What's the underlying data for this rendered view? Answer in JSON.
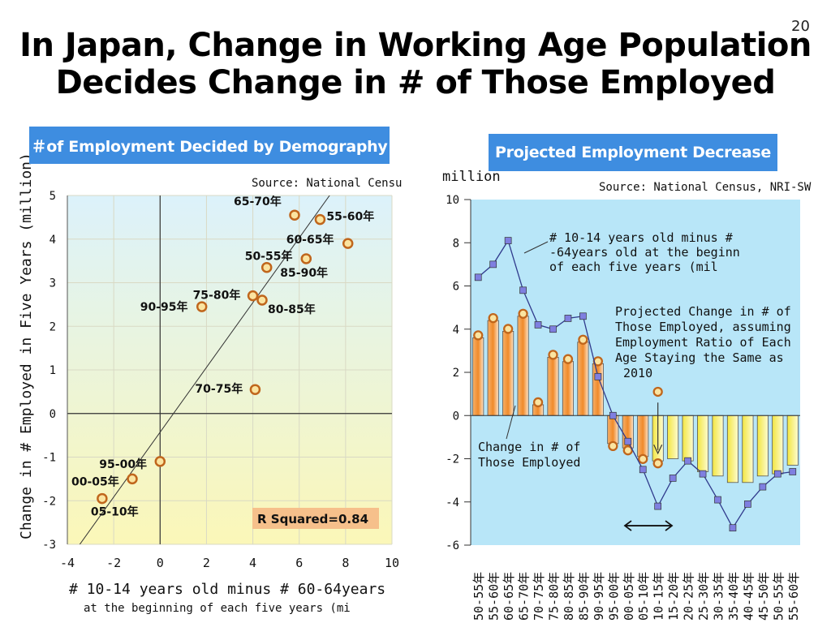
{
  "slide": {
    "title_line1": "In Japan, Change in Working Age Population",
    "title_line2": "Decides Change in # of Those Employed",
    "page_number": "20"
  },
  "left_panel": {
    "banner": "＃of Employment Decided by Demography",
    "source": "Source: National Censu",
    "r_squared": "R Squared=0.84"
  },
  "right_panel": {
    "banner": "Projected Employment Decrease",
    "source": "Source: National Census, NRI-SW",
    "unit": "million",
    "annotation_line": [
      "# 10-14 years old minus #",
      "-64years old at the beginn",
      "of each five years  (mil"
    ],
    "annotation_projection": [
      "Projected Change in # of",
      "Those Employed, assuming",
      "Employment Ratio of Each",
      "Age  Staying the Same as",
      "2010"
    ],
    "annotation_change": [
      "Change in # of",
      "Those Employed"
    ]
  },
  "colors": {
    "banner": "#3e8de0",
    "scatter_bg_top": "#dcf2fb",
    "scatter_bg_bottom": "#fbf7b8",
    "right_bg": "#b8e6f8",
    "marker": "#c0661c",
    "bar_orange": "#f08a2a",
    "bar_yellow": "#f7f26a",
    "line_square": "#7f7fe0",
    "line": "#303a8c",
    "rsq_bg": "#f6c08b"
  },
  "chart_data": [
    {
      "type": "scatter",
      "title": "",
      "xlabel": "# 10-14 years old minus # 60-64years",
      "xlabel2": "at the beginning of each five years  (mi",
      "ylabel": "Change in # Employed in Five Years (million)",
      "xlim": [
        -4,
        10
      ],
      "ylim": [
        -3,
        5
      ],
      "xticks": [
        -4,
        -2,
        0,
        2,
        4,
        6,
        8,
        10
      ],
      "yticks": [
        -3,
        -2,
        -1,
        0,
        1,
        2,
        3,
        4,
        5
      ],
      "points": [
        {
          "label": "65-70年",
          "x": 5.8,
          "y": 4.55
        },
        {
          "label": "55-60年",
          "x": 6.9,
          "y": 4.45
        },
        {
          "label": "60-65年",
          "x": 8.1,
          "y": 3.9
        },
        {
          "label": "50-55年",
          "x": 4.6,
          "y": 3.35
        },
        {
          "label": "85-90年",
          "x": 6.3,
          "y": 3.55
        },
        {
          "label": "75-80年",
          "x": 4.0,
          "y": 2.7
        },
        {
          "label": "80-85年",
          "x": 4.4,
          "y": 2.6
        },
        {
          "label": "90-95年",
          "x": 1.8,
          "y": 2.45
        },
        {
          "label": "70-75年",
          "x": 4.1,
          "y": 0.55
        },
        {
          "label": "95-00年",
          "x": 0.0,
          "y": -1.1
        },
        {
          "label": "00-05年",
          "x": -1.2,
          "y": -1.5
        },
        {
          "label": "05-10年",
          "x": -2.5,
          "y": -1.95
        }
      ],
      "trendline": [
        [
          -4,
          -3.4
        ],
        [
          10,
          7.0
        ]
      ],
      "r_squared": 0.84
    },
    {
      "type": "bar",
      "title": "",
      "ylabel": "million",
      "ylim": [
        -6,
        10
      ],
      "yticks": [
        -6,
        -4,
        -2,
        0,
        2,
        4,
        6,
        8,
        10
      ],
      "categories": [
        "50-55年",
        "55-60年",
        "60-65年",
        "65-70年",
        "70-75年",
        "75-80年",
        "80-85年",
        "85-90年",
        "90-95年",
        "95-00年",
        "00-05年",
        "05-10年",
        "10-15年",
        "15-20年",
        "20-25年",
        "25-30年",
        "30-35年",
        "35-40年",
        "40-45年",
        "45-50年",
        "50-55年",
        "55-60年"
      ],
      "series": [
        {
          "name": "Change in # of Those Employed",
          "kind": "bar",
          "values": [
            3.6,
            4.4,
            3.9,
            4.6,
            0.5,
            2.7,
            2.5,
            3.4,
            2.4,
            -1.3,
            -1.5,
            -1.9,
            -2.1,
            -2.0,
            -2.1,
            -2.6,
            -2.8,
            -3.1,
            -3.1,
            -2.8,
            -2.7,
            -2.3
          ]
        },
        {
          "name": "# 10-14 years old minus # 60-64years old at the beginning of each five years",
          "kind": "line",
          "values": [
            6.4,
            7.0,
            8.1,
            5.8,
            4.2,
            4.0,
            4.5,
            4.6,
            1.8,
            0.0,
            -1.2,
            -2.5,
            -4.2,
            -2.9,
            -2.1,
            -2.7,
            -3.9,
            -5.2,
            -4.1,
            -3.3,
            -2.7,
            -2.6
          ]
        }
      ],
      "orange_bars_through_index": 11,
      "dot_markers_through_index": 12
    }
  ]
}
